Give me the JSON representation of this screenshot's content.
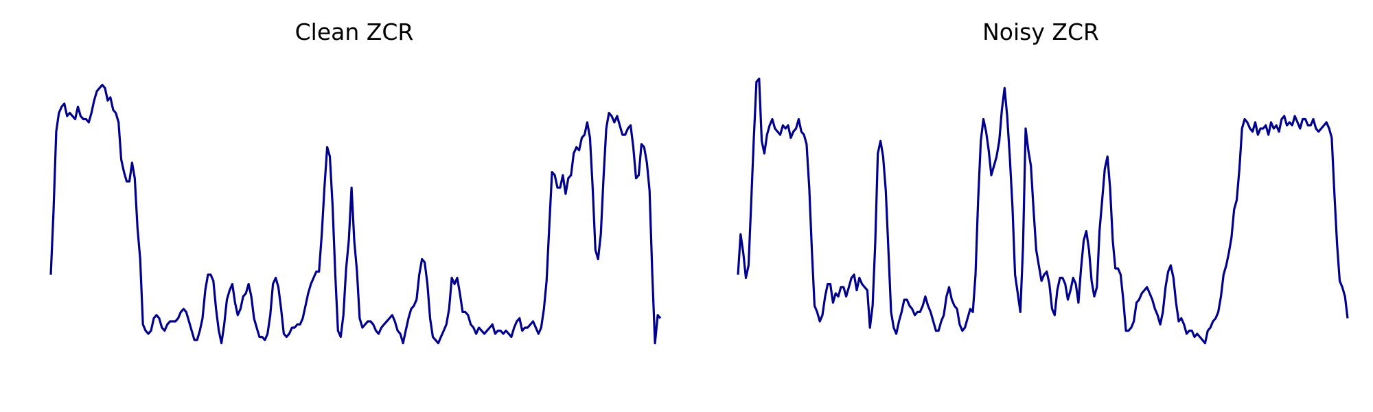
{
  "style": {
    "line_color": "#00008b",
    "background": "#ffffff"
  },
  "chart_data": [
    {
      "type": "line",
      "title": "Clean ZCR",
      "axes": "off",
      "grid": false,
      "legend": "none",
      "ylim": [
        0,
        1
      ],
      "series": [
        {
          "values": [
            0.32,
            0.52,
            0.78,
            0.84,
            0.86,
            0.87,
            0.83,
            0.84,
            0.83,
            0.82,
            0.86,
            0.83,
            0.82,
            0.82,
            0.81,
            0.84,
            0.88,
            0.91,
            0.92,
            0.93,
            0.92,
            0.88,
            0.89,
            0.85,
            0.84,
            0.81,
            0.69,
            0.65,
            0.62,
            0.62,
            0.68,
            0.63,
            0.47,
            0.37,
            0.16,
            0.14,
            0.13,
            0.14,
            0.18,
            0.19,
            0.18,
            0.15,
            0.14,
            0.16,
            0.17,
            0.17,
            0.17,
            0.18,
            0.2,
            0.21,
            0.2,
            0.17,
            0.14,
            0.11,
            0.11,
            0.14,
            0.18,
            0.27,
            0.32,
            0.32,
            0.3,
            0.21,
            0.14,
            0.1,
            0.16,
            0.24,
            0.27,
            0.29,
            0.23,
            0.19,
            0.21,
            0.25,
            0.26,
            0.29,
            0.25,
            0.18,
            0.15,
            0.12,
            0.12,
            0.11,
            0.13,
            0.19,
            0.29,
            0.31,
            0.28,
            0.21,
            0.13,
            0.12,
            0.13,
            0.15,
            0.15,
            0.16,
            0.16,
            0.18,
            0.22,
            0.26,
            0.29,
            0.31,
            0.33,
            0.33,
            0.45,
            0.6,
            0.73,
            0.7,
            0.54,
            0.32,
            0.14,
            0.12,
            0.19,
            0.34,
            0.43,
            0.6,
            0.43,
            0.33,
            0.18,
            0.15,
            0.16,
            0.17,
            0.17,
            0.16,
            0.14,
            0.13,
            0.15,
            0.16,
            0.17,
            0.18,
            0.19,
            0.17,
            0.14,
            0.13,
            0.1,
            0.14,
            0.18,
            0.21,
            0.22,
            0.24,
            0.32,
            0.37,
            0.36,
            0.29,
            0.18,
            0.12,
            0.11,
            0.1,
            0.12,
            0.14,
            0.16,
            0.21,
            0.31,
            0.29,
            0.31,
            0.26,
            0.2,
            0.2,
            0.19,
            0.16,
            0.15,
            0.13,
            0.15,
            0.14,
            0.13,
            0.14,
            0.15,
            0.16,
            0.13,
            0.14,
            0.14,
            0.13,
            0.14,
            0.13,
            0.12,
            0.15,
            0.17,
            0.18,
            0.14,
            0.15,
            0.15,
            0.16,
            0.17,
            0.15,
            0.13,
            0.15,
            0.21,
            0.3,
            0.48,
            0.65,
            0.64,
            0.6,
            0.6,
            0.64,
            0.58,
            0.63,
            0.64,
            0.71,
            0.73,
            0.72,
            0.76,
            0.77,
            0.81,
            0.76,
            0.6,
            0.4,
            0.37,
            0.45,
            0.63,
            0.79,
            0.84,
            0.83,
            0.81,
            0.83,
            0.8,
            0.77,
            0.77,
            0.79,
            0.8,
            0.73,
            0.63,
            0.64,
            0.74,
            0.73,
            0.68,
            0.59,
            0.32,
            0.1,
            0.19,
            0.18
          ]
        }
      ]
    },
    {
      "type": "line",
      "title": "Noisy ZCR",
      "axes": "off",
      "grid": false,
      "legend": "none",
      "ylim": [
        0,
        1
      ],
      "series": [
        {
          "values": [
            0.32,
            0.45,
            0.39,
            0.31,
            0.35,
            0.55,
            0.76,
            0.94,
            0.95,
            0.75,
            0.71,
            0.77,
            0.8,
            0.82,
            0.79,
            0.78,
            0.77,
            0.8,
            0.79,
            0.8,
            0.76,
            0.78,
            0.79,
            0.82,
            0.78,
            0.77,
            0.74,
            0.6,
            0.4,
            0.22,
            0.2,
            0.17,
            0.19,
            0.25,
            0.29,
            0.29,
            0.23,
            0.26,
            0.25,
            0.28,
            0.28,
            0.25,
            0.28,
            0.31,
            0.32,
            0.27,
            0.31,
            0.29,
            0.28,
            0.27,
            0.15,
            0.22,
            0.42,
            0.71,
            0.75,
            0.7,
            0.59,
            0.4,
            0.2,
            0.15,
            0.13,
            0.17,
            0.2,
            0.24,
            0.24,
            0.22,
            0.21,
            0.19,
            0.2,
            0.2,
            0.22,
            0.25,
            0.22,
            0.2,
            0.17,
            0.14,
            0.14,
            0.17,
            0.19,
            0.25,
            0.28,
            0.24,
            0.22,
            0.21,
            0.16,
            0.14,
            0.15,
            0.18,
            0.21,
            0.2,
            0.32,
            0.56,
            0.75,
            0.82,
            0.78,
            0.72,
            0.64,
            0.67,
            0.7,
            0.75,
            0.85,
            0.92,
            0.83,
            0.7,
            0.54,
            0.32,
            0.26,
            0.2,
            0.41,
            0.79,
            0.72,
            0.67,
            0.53,
            0.4,
            0.35,
            0.3,
            0.32,
            0.33,
            0.29,
            0.21,
            0.19,
            0.27,
            0.31,
            0.31,
            0.29,
            0.24,
            0.27,
            0.31,
            0.29,
            0.23,
            0.34,
            0.43,
            0.46,
            0.4,
            0.3,
            0.25,
            0.28,
            0.46,
            0.56,
            0.66,
            0.7,
            0.6,
            0.43,
            0.34,
            0.34,
            0.32,
            0.24,
            0.14,
            0.14,
            0.15,
            0.17,
            0.23,
            0.24,
            0.26,
            0.27,
            0.28,
            0.26,
            0.24,
            0.21,
            0.19,
            0.16,
            0.2,
            0.28,
            0.33,
            0.35,
            0.31,
            0.23,
            0.17,
            0.18,
            0.16,
            0.13,
            0.14,
            0.14,
            0.12,
            0.13,
            0.12,
            0.11,
            0.1,
            0.14,
            0.15,
            0.17,
            0.18,
            0.2,
            0.25,
            0.32,
            0.35,
            0.39,
            0.44,
            0.53,
            0.56,
            0.66,
            0.79,
            0.82,
            0.81,
            0.79,
            0.78,
            0.81,
            0.77,
            0.79,
            0.79,
            0.8,
            0.77,
            0.81,
            0.79,
            0.8,
            0.78,
            0.82,
            0.83,
            0.8,
            0.81,
            0.8,
            0.83,
            0.81,
            0.79,
            0.82,
            0.82,
            0.8,
            0.8,
            0.82,
            0.79,
            0.78,
            0.79,
            0.8,
            0.81,
            0.79,
            0.76,
            0.58,
            0.42,
            0.3,
            0.28,
            0.25,
            0.18
          ]
        }
      ]
    }
  ]
}
